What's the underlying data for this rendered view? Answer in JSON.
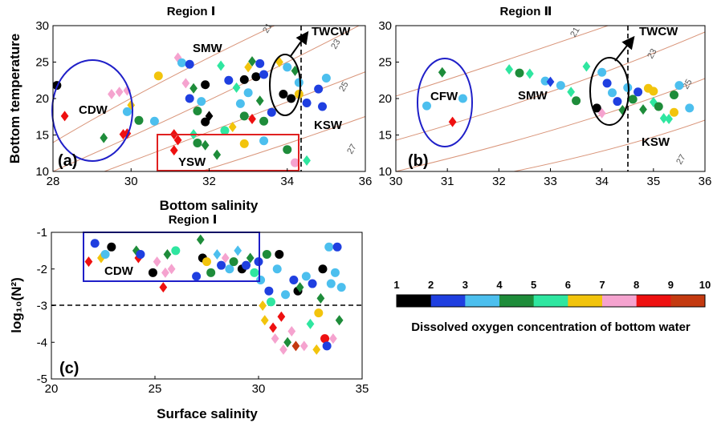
{
  "colors": {
    "do_scale": [
      "#000000",
      "#1f3fe0",
      "#4cbfee",
      "#1e8c3a",
      "#2fe6a0",
      "#f2c40c",
      "#f5a3cf",
      "#ee1010",
      "#c43a10"
    ],
    "circle_ann": "#1f1fc8",
    "rect_ann": "#e02020",
    "contour": "#d9957a"
  },
  "colorbar": {
    "ticks": [
      "1",
      "2",
      "3",
      "4",
      "5",
      "6",
      "7",
      "8",
      "9",
      "10"
    ],
    "title": "Dissolved oxygen concentration of bottom water"
  },
  "chart_data": [
    {
      "panel": "(a)",
      "type": "scatter",
      "title": "Region Ⅰ",
      "xlabel": "Bottom salinity",
      "ylabel": "Bottom temperature",
      "xlim": [
        28,
        36
      ],
      "ylim": [
        10,
        30
      ],
      "xticks": [
        "28",
        "30",
        "32",
        "34",
        "36"
      ],
      "yticks": [
        "10",
        "15",
        "20",
        "25",
        "30"
      ],
      "water_masses": [
        "SMW",
        "CDW",
        "YSW",
        "KSW",
        "TWCW"
      ],
      "density_contours": [
        "21",
        "23",
        "25",
        "27"
      ],
      "threshold_x": 34.5,
      "points": [
        {
          "x": 28.1,
          "y": 21.8,
          "do": 1,
          "m": "o"
        },
        {
          "x": 28.3,
          "y": 17.6,
          "do": 8,
          "m": "d"
        },
        {
          "x": 29.3,
          "y": 14.6,
          "do": 4,
          "m": "d"
        },
        {
          "x": 29.8,
          "y": 15.1,
          "do": 8,
          "m": "d"
        },
        {
          "x": 29.9,
          "y": 15.2,
          "do": 8,
          "m": "d"
        },
        {
          "x": 29.5,
          "y": 20.6,
          "do": 7,
          "m": "d"
        },
        {
          "x": 29.7,
          "y": 20.9,
          "do": 7,
          "m": "d"
        },
        {
          "x": 29.9,
          "y": 21.1,
          "do": 7,
          "m": "d"
        },
        {
          "x": 30.0,
          "y": 19.1,
          "do": 6,
          "m": "d"
        },
        {
          "x": 29.9,
          "y": 18.2,
          "do": 3,
          "m": "o"
        },
        {
          "x": 30.2,
          "y": 17.0,
          "do": 4,
          "m": "o"
        },
        {
          "x": 30.6,
          "y": 16.9,
          "do": 3,
          "m": "o"
        },
        {
          "x": 30.7,
          "y": 23.1,
          "do": 6,
          "m": "o"
        },
        {
          "x": 31.2,
          "y": 25.6,
          "do": 7,
          "m": "d"
        },
        {
          "x": 31.3,
          "y": 24.9,
          "do": 3,
          "m": "o"
        },
        {
          "x": 31.5,
          "y": 24.7,
          "do": 2,
          "m": "o"
        },
        {
          "x": 31.4,
          "y": 22.1,
          "do": 7,
          "m": "d"
        },
        {
          "x": 31.6,
          "y": 21.4,
          "do": 4,
          "m": "d"
        },
        {
          "x": 31.8,
          "y": 19.6,
          "do": 3,
          "m": "o"
        },
        {
          "x": 31.9,
          "y": 21.9,
          "do": 1,
          "m": "o"
        },
        {
          "x": 31.5,
          "y": 20.0,
          "do": 2,
          "m": "o"
        },
        {
          "x": 31.7,
          "y": 18.3,
          "do": 4,
          "m": "o"
        },
        {
          "x": 32.0,
          "y": 17.6,
          "do": 1,
          "m": "d"
        },
        {
          "x": 31.9,
          "y": 16.8,
          "do": 1,
          "m": "o"
        },
        {
          "x": 31.1,
          "y": 15.1,
          "do": 8,
          "m": "d"
        },
        {
          "x": 31.2,
          "y": 14.3,
          "do": 8,
          "m": "d"
        },
        {
          "x": 31.1,
          "y": 12.9,
          "do": 8,
          "m": "d"
        },
        {
          "x": 31.6,
          "y": 15.1,
          "do": 5,
          "m": "d"
        },
        {
          "x": 31.7,
          "y": 13.9,
          "do": 4,
          "m": "o"
        },
        {
          "x": 31.9,
          "y": 13.6,
          "do": 4,
          "m": "d"
        },
        {
          "x": 32.2,
          "y": 12.3,
          "do": 4,
          "m": "d"
        },
        {
          "x": 32.4,
          "y": 15.6,
          "do": 5,
          "m": "o"
        },
        {
          "x": 32.3,
          "y": 24.5,
          "do": 5,
          "m": "d"
        },
        {
          "x": 32.5,
          "y": 22.5,
          "do": 2,
          "m": "o"
        },
        {
          "x": 32.7,
          "y": 21.5,
          "do": 5,
          "m": "d"
        },
        {
          "x": 32.8,
          "y": 19.3,
          "do": 3,
          "m": "o"
        },
        {
          "x": 32.9,
          "y": 17.6,
          "do": 4,
          "m": "o"
        },
        {
          "x": 32.9,
          "y": 22.6,
          "do": 1,
          "m": "o"
        },
        {
          "x": 33.0,
          "y": 24.3,
          "do": 6,
          "m": "d"
        },
        {
          "x": 33.1,
          "y": 25.1,
          "do": 4,
          "m": "d"
        },
        {
          "x": 33.3,
          "y": 24.8,
          "do": 2,
          "m": "o"
        },
        {
          "x": 33.2,
          "y": 23.0,
          "do": 1,
          "m": "o"
        },
        {
          "x": 33.4,
          "y": 23.3,
          "do": 2,
          "m": "o"
        },
        {
          "x": 33.0,
          "y": 20.8,
          "do": 3,
          "m": "o"
        },
        {
          "x": 33.3,
          "y": 19.7,
          "do": 4,
          "m": "d"
        },
        {
          "x": 33.6,
          "y": 18.1,
          "do": 2,
          "m": "o"
        },
        {
          "x": 33.9,
          "y": 20.6,
          "do": 1,
          "m": "o"
        },
        {
          "x": 33.1,
          "y": 17.2,
          "do": 8,
          "m": "d"
        },
        {
          "x": 33.4,
          "y": 16.9,
          "do": 4,
          "m": "o"
        },
        {
          "x": 32.6,
          "y": 16.1,
          "do": 6,
          "m": "d"
        },
        {
          "x": 32.9,
          "y": 13.8,
          "do": 6,
          "m": "o"
        },
        {
          "x": 33.4,
          "y": 14.2,
          "do": 3,
          "m": "o"
        },
        {
          "x": 34.0,
          "y": 13.0,
          "do": 4,
          "m": "o"
        },
        {
          "x": 34.2,
          "y": 11.2,
          "do": 7,
          "m": "o"
        },
        {
          "x": 34.5,
          "y": 11.5,
          "do": 5,
          "m": "d"
        },
        {
          "x": 33.8,
          "y": 25.0,
          "do": 6,
          "m": "d"
        },
        {
          "x": 34.0,
          "y": 24.3,
          "do": 3,
          "m": "o"
        },
        {
          "x": 34.2,
          "y": 23.8,
          "do": 4,
          "m": "d"
        },
        {
          "x": 34.3,
          "y": 22.2,
          "do": 3,
          "m": "o"
        },
        {
          "x": 34.1,
          "y": 20.0,
          "do": 1,
          "m": "o"
        },
        {
          "x": 34.3,
          "y": 20.6,
          "do": 6,
          "m": "o"
        },
        {
          "x": 34.5,
          "y": 19.4,
          "do": 2,
          "m": "o"
        },
        {
          "x": 34.8,
          "y": 21.3,
          "do": 2,
          "m": "o"
        },
        {
          "x": 35.0,
          "y": 22.8,
          "do": 3,
          "m": "o"
        },
        {
          "x": 34.9,
          "y": 18.9,
          "do": 2,
          "m": "o"
        }
      ]
    },
    {
      "panel": "(b)",
      "type": "scatter",
      "title": "Region Ⅱ",
      "xlabel": "",
      "ylabel": "",
      "xlim": [
        30,
        36
      ],
      "ylim": [
        10,
        30
      ],
      "xticks": [
        "30",
        "31",
        "32",
        "33",
        "34",
        "35",
        "36"
      ],
      "yticks": [
        "10",
        "15",
        "20",
        "25",
        "30"
      ],
      "water_masses": [
        "CFW",
        "SMW",
        "KSW",
        "TWCW"
      ],
      "density_contours": [
        "21",
        "23",
        "25",
        "27"
      ],
      "threshold_x": 34.5,
      "points": [
        {
          "x": 30.9,
          "y": 23.6,
          "do": 4,
          "m": "d"
        },
        {
          "x": 30.6,
          "y": 19.0,
          "do": 3,
          "m": "o"
        },
        {
          "x": 31.3,
          "y": 20.0,
          "do": 3,
          "m": "o"
        },
        {
          "x": 31.1,
          "y": 16.8,
          "do": 8,
          "m": "d"
        },
        {
          "x": 32.2,
          "y": 24.0,
          "do": 5,
          "m": "d"
        },
        {
          "x": 32.4,
          "y": 23.5,
          "do": 4,
          "m": "o"
        },
        {
          "x": 32.6,
          "y": 23.4,
          "do": 5,
          "m": "d"
        },
        {
          "x": 32.9,
          "y": 22.4,
          "do": 3,
          "m": "o"
        },
        {
          "x": 33.0,
          "y": 22.3,
          "do": 2,
          "m": "d"
        },
        {
          "x": 33.2,
          "y": 21.8,
          "do": 3,
          "m": "o"
        },
        {
          "x": 33.4,
          "y": 20.9,
          "do": 5,
          "m": "d"
        },
        {
          "x": 33.5,
          "y": 19.7,
          "do": 4,
          "m": "o"
        },
        {
          "x": 33.7,
          "y": 24.4,
          "do": 5,
          "m": "d"
        },
        {
          "x": 33.9,
          "y": 18.7,
          "do": 1,
          "m": "o"
        },
        {
          "x": 34.0,
          "y": 23.6,
          "do": 3,
          "m": "o"
        },
        {
          "x": 34.1,
          "y": 22.1,
          "do": 2,
          "m": "o"
        },
        {
          "x": 34.2,
          "y": 20.8,
          "do": 3,
          "m": "o"
        },
        {
          "x": 34.3,
          "y": 19.6,
          "do": 2,
          "m": "o"
        },
        {
          "x": 34.4,
          "y": 18.4,
          "do": 4,
          "m": "d"
        },
        {
          "x": 34.0,
          "y": 18.0,
          "do": 7,
          "m": "d"
        },
        {
          "x": 34.5,
          "y": 21.5,
          "do": 3,
          "m": "o"
        },
        {
          "x": 34.6,
          "y": 19.9,
          "do": 4,
          "m": "o"
        },
        {
          "x": 34.8,
          "y": 18.5,
          "do": 4,
          "m": "d"
        },
        {
          "x": 34.9,
          "y": 21.4,
          "do": 6,
          "m": "o"
        },
        {
          "x": 35.0,
          "y": 21.0,
          "do": 6,
          "m": "o"
        },
        {
          "x": 35.0,
          "y": 19.5,
          "do": 5,
          "m": "d"
        },
        {
          "x": 35.1,
          "y": 18.9,
          "do": 4,
          "m": "o"
        },
        {
          "x": 35.2,
          "y": 17.3,
          "do": 5,
          "m": "d"
        },
        {
          "x": 35.3,
          "y": 17.2,
          "do": 5,
          "m": "d"
        },
        {
          "x": 35.4,
          "y": 18.1,
          "do": 6,
          "m": "o"
        },
        {
          "x": 35.5,
          "y": 21.8,
          "do": 3,
          "m": "o"
        },
        {
          "x": 35.7,
          "y": 18.7,
          "do": 3,
          "m": "o"
        },
        {
          "x": 35.4,
          "y": 20.5,
          "do": 4,
          "m": "o"
        },
        {
          "x": 34.7,
          "y": 20.9,
          "do": 2,
          "m": "o"
        }
      ]
    },
    {
      "panel": "(c)",
      "type": "scatter",
      "title": "Region Ⅰ",
      "xlabel": "Surface salinity",
      "ylabel": "log₁₀(N²)",
      "xlim": [
        20,
        35
      ],
      "ylim": [
        -5,
        -1
      ],
      "xticks": [
        "20",
        "25",
        "30",
        "35"
      ],
      "yticks": [
        "-5",
        "-4",
        "-3",
        "-2",
        "-1"
      ],
      "water_masses": [
        "CDW"
      ],
      "threshold_y": -3,
      "points": [
        {
          "x": 21.8,
          "y": -1.8,
          "do": 8,
          "m": "d"
        },
        {
          "x": 22.1,
          "y": -1.3,
          "do": 2,
          "m": "o"
        },
        {
          "x": 22.4,
          "y": -1.7,
          "do": 6,
          "m": "d"
        },
        {
          "x": 22.6,
          "y": -1.6,
          "do": 3,
          "m": "o"
        },
        {
          "x": 22.9,
          "y": -1.4,
          "do": 1,
          "m": "o"
        },
        {
          "x": 24.1,
          "y": -1.5,
          "do": 4,
          "m": "d"
        },
        {
          "x": 24.2,
          "y": -1.7,
          "do": 8,
          "m": "d"
        },
        {
          "x": 24.3,
          "y": -1.6,
          "do": 2,
          "m": "o"
        },
        {
          "x": 24.9,
          "y": -2.1,
          "do": 1,
          "m": "o"
        },
        {
          "x": 25.1,
          "y": -1.8,
          "do": 7,
          "m": "d"
        },
        {
          "x": 25.4,
          "y": -2.5,
          "do": 8,
          "m": "d"
        },
        {
          "x": 25.5,
          "y": -2.1,
          "do": 7,
          "m": "d"
        },
        {
          "x": 25.6,
          "y": -1.6,
          "do": 4,
          "m": "d"
        },
        {
          "x": 25.8,
          "y": -2.0,
          "do": 7,
          "m": "d"
        },
        {
          "x": 26.0,
          "y": -1.5,
          "do": 5,
          "m": "o"
        },
        {
          "x": 27.0,
          "y": -2.2,
          "do": 2,
          "m": "o"
        },
        {
          "x": 27.2,
          "y": -1.2,
          "do": 4,
          "m": "d"
        },
        {
          "x": 27.3,
          "y": -1.7,
          "do": 1,
          "m": "o"
        },
        {
          "x": 27.5,
          "y": -1.8,
          "do": 6,
          "m": "o"
        },
        {
          "x": 27.7,
          "y": -2.1,
          "do": 4,
          "m": "o"
        },
        {
          "x": 28.0,
          "y": -1.6,
          "do": 3,
          "m": "d"
        },
        {
          "x": 28.2,
          "y": -1.9,
          "do": 2,
          "m": "o"
        },
        {
          "x": 28.4,
          "y": -1.7,
          "do": 7,
          "m": "d"
        },
        {
          "x": 28.6,
          "y": -2.0,
          "do": 3,
          "m": "o"
        },
        {
          "x": 28.8,
          "y": -1.8,
          "do": 4,
          "m": "o"
        },
        {
          "x": 29.0,
          "y": -1.5,
          "do": 3,
          "m": "d"
        },
        {
          "x": 29.2,
          "y": -2.0,
          "do": 1,
          "m": "o"
        },
        {
          "x": 29.4,
          "y": -1.9,
          "do": 2,
          "m": "o"
        },
        {
          "x": 29.6,
          "y": -1.7,
          "do": 4,
          "m": "d"
        },
        {
          "x": 29.8,
          "y": -2.1,
          "do": 5,
          "m": "o"
        },
        {
          "x": 30.0,
          "y": -1.8,
          "do": 2,
          "m": "o"
        },
        {
          "x": 30.1,
          "y": -2.3,
          "do": 3,
          "m": "o"
        },
        {
          "x": 30.2,
          "y": -3.0,
          "do": 6,
          "m": "d"
        },
        {
          "x": 30.3,
          "y": -3.4,
          "do": 6,
          "m": "d"
        },
        {
          "x": 30.4,
          "y": -1.6,
          "do": 4,
          "m": "o"
        },
        {
          "x": 30.5,
          "y": -2.6,
          "do": 2,
          "m": "o"
        },
        {
          "x": 30.6,
          "y": -2.9,
          "do": 5,
          "m": "o"
        },
        {
          "x": 30.7,
          "y": -3.6,
          "do": 8,
          "m": "d"
        },
        {
          "x": 30.8,
          "y": -3.9,
          "do": 7,
          "m": "d"
        },
        {
          "x": 30.9,
          "y": -2.0,
          "do": 3,
          "m": "o"
        },
        {
          "x": 31.0,
          "y": -1.6,
          "do": 1,
          "m": "o"
        },
        {
          "x": 31.1,
          "y": -3.3,
          "do": 8,
          "m": "d"
        },
        {
          "x": 31.2,
          "y": -4.2,
          "do": 7,
          "m": "d"
        },
        {
          "x": 31.3,
          "y": -2.7,
          "do": 3,
          "m": "o"
        },
        {
          "x": 31.4,
          "y": -4.0,
          "do": 4,
          "m": "d"
        },
        {
          "x": 31.6,
          "y": -3.7,
          "do": 7,
          "m": "d"
        },
        {
          "x": 31.7,
          "y": -2.3,
          "do": 2,
          "m": "o"
        },
        {
          "x": 31.8,
          "y": -4.1,
          "do": 9,
          "m": "d"
        },
        {
          "x": 31.9,
          "y": -2.6,
          "do": 1,
          "m": "o"
        },
        {
          "x": 32.0,
          "y": -2.5,
          "do": 4,
          "m": "d"
        },
        {
          "x": 32.2,
          "y": -4.1,
          "do": 7,
          "m": "d"
        },
        {
          "x": 32.3,
          "y": -2.2,
          "do": 3,
          "m": "o"
        },
        {
          "x": 32.5,
          "y": -3.5,
          "do": 5,
          "m": "d"
        },
        {
          "x": 32.6,
          "y": -2.4,
          "do": 2,
          "m": "o"
        },
        {
          "x": 32.8,
          "y": -4.2,
          "do": 6,
          "m": "d"
        },
        {
          "x": 32.9,
          "y": -3.2,
          "do": 6,
          "m": "o"
        },
        {
          "x": 33.0,
          "y": -2.8,
          "do": 4,
          "m": "d"
        },
        {
          "x": 33.1,
          "y": -2.0,
          "do": 1,
          "m": "o"
        },
        {
          "x": 33.2,
          "y": -3.9,
          "do": 8,
          "m": "o"
        },
        {
          "x": 33.3,
          "y": -4.1,
          "do": 2,
          "m": "o"
        },
        {
          "x": 33.4,
          "y": -1.4,
          "do": 3,
          "m": "o"
        },
        {
          "x": 33.5,
          "y": -2.4,
          "do": 3,
          "m": "o"
        },
        {
          "x": 33.6,
          "y": -3.9,
          "do": 7,
          "m": "d"
        },
        {
          "x": 33.7,
          "y": -2.1,
          "do": 3,
          "m": "o"
        },
        {
          "x": 33.8,
          "y": -1.4,
          "do": 2,
          "m": "o"
        },
        {
          "x": 33.9,
          "y": -3.4,
          "do": 4,
          "m": "d"
        },
        {
          "x": 34.0,
          "y": -2.5,
          "do": 3,
          "m": "o"
        }
      ]
    }
  ]
}
